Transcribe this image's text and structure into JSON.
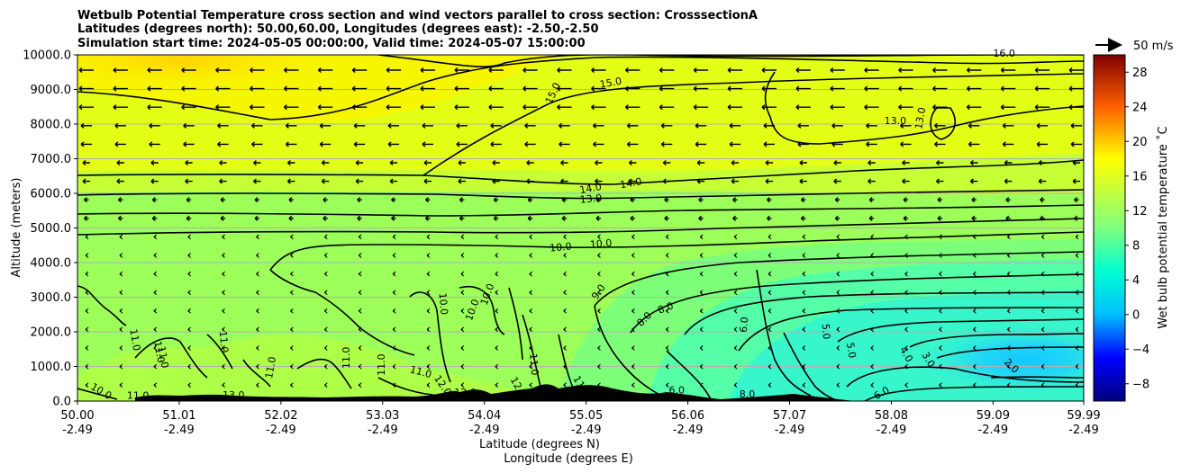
{
  "chart_data": {
    "type": "heatmap",
    "title_lines": [
      "Wetbulb Potential Temperature cross section and wind vectors parallel to cross section: CrosssectionA",
      "Latitudes (degrees north): 50.00,60.00, Longitudes (degrees east): -2.50,-2.50",
      "Simulation start time: 2024-05-05 00:00:00, Valid time: 2024-05-07 15:00:00"
    ],
    "xlabel": "Latitude (degrees N)",
    "xlabel2": "Longitude (degrees E)",
    "ylabel": "Altitude (meters)",
    "x_range": [
      50.0,
      59.99
    ],
    "ylim": [
      0,
      10000
    ],
    "x_ticks": [
      {
        "lat": "50.00",
        "lon": "-2.49",
        "v": 50.0
      },
      {
        "lat": "51.01",
        "lon": "-2.49",
        "v": 51.01
      },
      {
        "lat": "52.02",
        "lon": "-2.49",
        "v": 52.02
      },
      {
        "lat": "53.03",
        "lon": "-2.49",
        "v": 53.03
      },
      {
        "lat": "54.04",
        "lon": "-2.49",
        "v": 54.04
      },
      {
        "lat": "55.05",
        "lon": "-2.49",
        "v": 55.05
      },
      {
        "lat": "56.06",
        "lon": "-2.49",
        "v": 56.06
      },
      {
        "lat": "57.07",
        "lon": "-2.49",
        "v": 57.07
      },
      {
        "lat": "58.08",
        "lon": "-2.49",
        "v": 58.08
      },
      {
        "lat": "59.09",
        "lon": "-2.49",
        "v": 59.09
      },
      {
        "lat": "59.99",
        "lon": "-2.49",
        "v": 59.99
      }
    ],
    "y_ticks": [
      {
        "label": "0.0",
        "v": 0
      },
      {
        "label": "1000.0",
        "v": 1000
      },
      {
        "label": "2000.0",
        "v": 2000
      },
      {
        "label": "3000.0",
        "v": 3000
      },
      {
        "label": "4000.0",
        "v": 4000
      },
      {
        "label": "5000.0",
        "v": 5000
      },
      {
        "label": "6000.0",
        "v": 6000
      },
      {
        "label": "7000.0",
        "v": 7000
      },
      {
        "label": "8000.0",
        "v": 8000
      },
      {
        "label": "9000.0",
        "v": 9000
      },
      {
        "label": "10000.0",
        "v": 10000
      }
    ],
    "grid": "horizontal",
    "colorbar": {
      "label": "Wet bulb potential temperature ˚C",
      "colormap": "jet",
      "range": [
        -10,
        30
      ],
      "ticks": [
        "−8",
        "−4",
        "0",
        "4",
        "8",
        "12",
        "16",
        "20",
        "24",
        "28"
      ],
      "tick_values": [
        -8,
        -4,
        0,
        4,
        8,
        12,
        16,
        20,
        24,
        28
      ]
    },
    "quiver_key": {
      "label": "50 m/s",
      "speed_ms": 50
    },
    "contour_labels": [
      {
        "text": "15.0",
        "lat": 55.3,
        "alt": 9100,
        "rot": -10
      },
      {
        "text": "15.0",
        "lat": 54.75,
        "alt": 8850,
        "rot": -65
      },
      {
        "text": "16.0",
        "lat": 59.2,
        "alt": 9950,
        "rot": 0
      },
      {
        "text": "13.0",
        "lat": 58.12,
        "alt": 8000,
        "rot": 0
      },
      {
        "text": "13.0",
        "lat": 58.4,
        "alt": 8150,
        "rot": -80
      },
      {
        "text": "14.0",
        "lat": 55.1,
        "alt": 6050,
        "rot": -10
      },
      {
        "text": "14.0",
        "lat": 55.5,
        "alt": 6200,
        "rot": -10
      },
      {
        "text": "13.0",
        "lat": 55.1,
        "alt": 5750,
        "rot": -5
      },
      {
        "text": "10.0",
        "lat": 54.8,
        "alt": 4350,
        "rot": -5
      },
      {
        "text": "10.0",
        "lat": 55.2,
        "alt": 4450,
        "rot": -5
      },
      {
        "text": "9.0",
        "lat": 55.2,
        "alt": 3100,
        "rot": -55
      },
      {
        "text": "8.0",
        "lat": 55.65,
        "alt": 2300,
        "rot": -45
      },
      {
        "text": "8.0",
        "lat": 55.85,
        "alt": 2600,
        "rot": -20
      },
      {
        "text": "6.0",
        "lat": 56.65,
        "alt": 2200,
        "rot": -85
      },
      {
        "text": "5.0",
        "lat": 57.4,
        "alt": 2000,
        "rot": 85
      },
      {
        "text": "5.0",
        "lat": 57.65,
        "alt": 1450,
        "rot": 80
      },
      {
        "text": "4.0",
        "lat": 58.2,
        "alt": 1300,
        "rot": 60
      },
      {
        "text": "3.0",
        "lat": 58.42,
        "alt": 1150,
        "rot": 60
      },
      {
        "text": "2.0",
        "lat": 59.25,
        "alt": 950,
        "rot": 45
      },
      {
        "text": "6.0",
        "lat": 58.0,
        "alt": 150,
        "rot": -30
      },
      {
        "text": "8.0",
        "lat": 56.65,
        "alt": 100,
        "rot": 0
      },
      {
        "text": "6.0",
        "lat": 55.95,
        "alt": 220,
        "rot": 0
      },
      {
        "text": "10.0",
        "lat": 53.95,
        "alt": 2600,
        "rot": -70
      },
      {
        "text": "10.0",
        "lat": 54.1,
        "alt": 3050,
        "rot": -70
      },
      {
        "text": "10.0",
        "lat": 53.6,
        "alt": 2800,
        "rot": 85
      },
      {
        "text": "11.0",
        "lat": 51.42,
        "alt": 1700,
        "rot": 85
      },
      {
        "text": "11.0",
        "lat": 50.54,
        "alt": 1750,
        "rot": 80
      },
      {
        "text": "11.0",
        "lat": 50.78,
        "alt": 1400,
        "rot": 80
      },
      {
        "text": "11.0",
        "lat": 50.82,
        "alt": 1250,
        "rot": 80
      },
      {
        "text": "11.0",
        "lat": 51.95,
        "alt": 950,
        "rot": -80
      },
      {
        "text": "11.0",
        "lat": 52.7,
        "alt": 1250,
        "rot": -90
      },
      {
        "text": "11.0",
        "lat": 53.05,
        "alt": 1050,
        "rot": -90
      },
      {
        "text": "11.0",
        "lat": 53.4,
        "alt": 750,
        "rot": 15
      },
      {
        "text": "11.0",
        "lat": 54.5,
        "alt": 1050,
        "rot": 85
      },
      {
        "text": "12.0",
        "lat": 53.6,
        "alt": 400,
        "rot": 55
      },
      {
        "text": "12.0",
        "lat": 53.85,
        "alt": 150,
        "rot": 0
      },
      {
        "text": "12.0",
        "lat": 54.35,
        "alt": 350,
        "rot": 60
      },
      {
        "text": "13.0",
        "lat": 51.55,
        "alt": 80,
        "rot": 0
      },
      {
        "text": "11.0",
        "lat": 50.6,
        "alt": 60,
        "rot": 0
      },
      {
        "text": "10.0",
        "lat": 50.22,
        "alt": 200,
        "rot": 30
      },
      {
        "text": "11",
        "lat": 54.95,
        "alt": 500,
        "rot": 60
      }
    ]
  }
}
